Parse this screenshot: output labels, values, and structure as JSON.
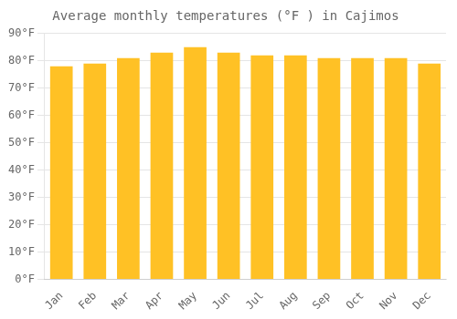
{
  "chart_data": {
    "type": "bar",
    "title": "Average monthly temperatures (°F ) in Cajimos",
    "categories": [
      "Jan",
      "Feb",
      "Mar",
      "Apr",
      "May",
      "Jun",
      "Jul",
      "Aug",
      "Sep",
      "Oct",
      "Nov",
      "Dec"
    ],
    "values": [
      78,
      79,
      81,
      83,
      85,
      83,
      82,
      82,
      81,
      81,
      81,
      79
    ],
    "color": "#FFC125",
    "ylim": [
      0,
      90
    ],
    "yticks": [
      {
        "value": 0,
        "label": "0°F"
      },
      {
        "value": 10,
        "label": "10°F"
      },
      {
        "value": 20,
        "label": "20°F"
      },
      {
        "value": 30,
        "label": "30°F"
      },
      {
        "value": 40,
        "label": "40°F"
      },
      {
        "value": 50,
        "label": "50°F"
      },
      {
        "value": 60,
        "label": "60°F"
      },
      {
        "value": 70,
        "label": "70°F"
      },
      {
        "value": 80,
        "label": "80°F"
      },
      {
        "value": 90,
        "label": "90°F"
      }
    ],
    "grid": true
  }
}
